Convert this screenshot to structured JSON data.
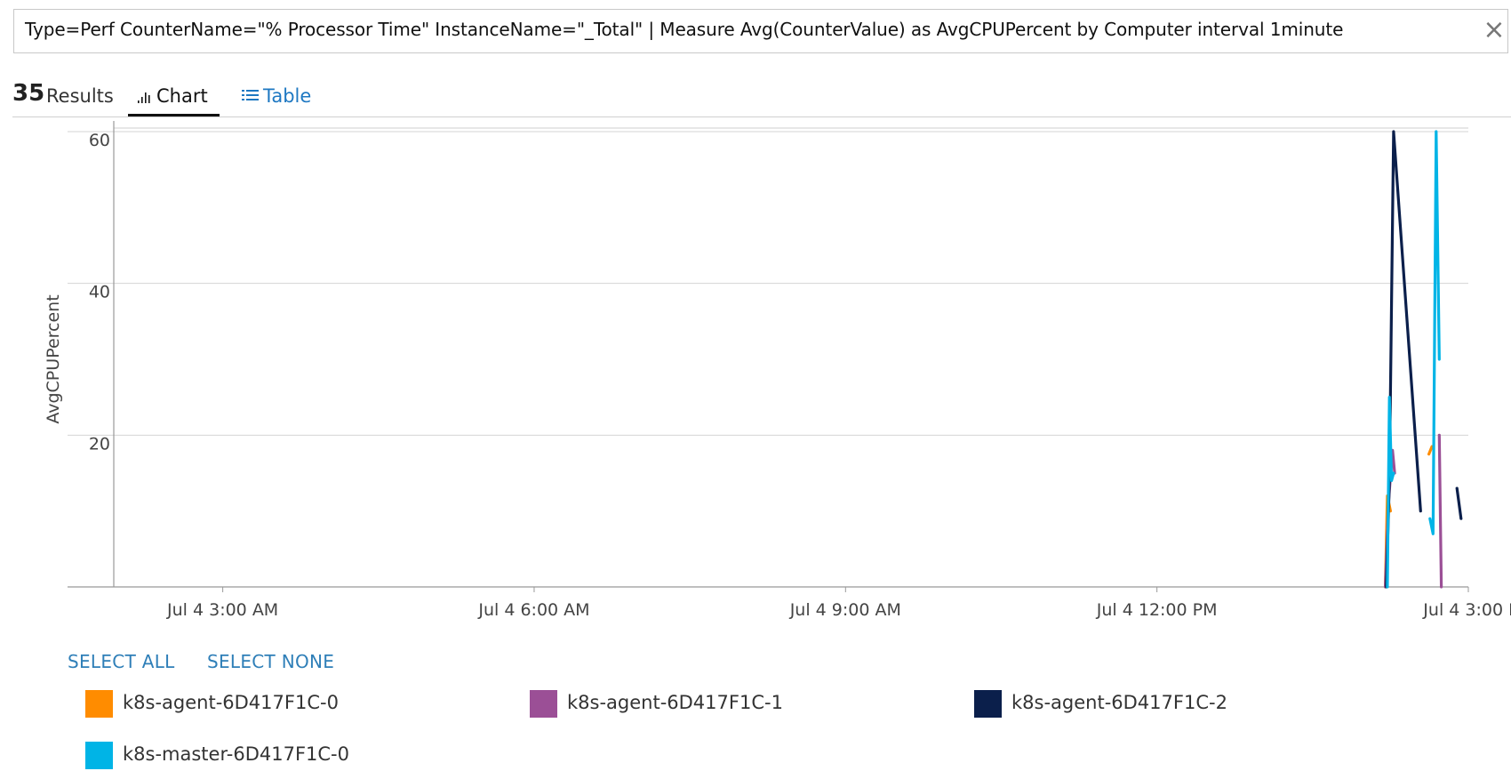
{
  "query": {
    "text": "Type=Perf CounterName=\"% Processor Time\" InstanceName=\"_Total\" | Measure Avg(CounterValue) as AvgCPUPercent by Computer interval 1minute",
    "clear_glyph": "×"
  },
  "results": {
    "count": "35",
    "label": "Results"
  },
  "tabs": [
    {
      "label": "Chart",
      "icon": "bar-chart-icon",
      "active": true
    },
    {
      "label": "Table",
      "icon": "table-list-icon",
      "active": false
    }
  ],
  "legend_actions": {
    "select_all": "SELECT ALL",
    "select_none": "SELECT NONE"
  },
  "colors": {
    "k8s-agent-0": "#ff8c00",
    "k8s-agent-1": "#9b4f96",
    "k8s-agent-2": "#0b1f4b",
    "k8s-master-0": "#00b4e6"
  },
  "chart_data": {
    "type": "line",
    "title": "",
    "xlabel": "",
    "ylabel": "AvgCPUPercent",
    "ylim": [
      0,
      60
    ],
    "yticks": [
      20,
      40,
      60
    ],
    "xlim_hours": [
      1.95,
      15.0
    ],
    "xticks": [
      {
        "hour": 3,
        "label": "Jul 4 3:00 AM"
      },
      {
        "hour": 6,
        "label": "Jul 4 6:00 AM"
      },
      {
        "hour": 9,
        "label": "Jul 4 9:00 AM"
      },
      {
        "hour": 12,
        "label": "Jul 4 12:00 PM"
      },
      {
        "hour": 15,
        "label": "Jul 4 3:00 I"
      }
    ],
    "grid": true,
    "legend": "bottom",
    "series": [
      {
        "name": "k8s-agent-6D417F1C-0",
        "color": "#ff8c00",
        "segments": [
          [
            [
              14.2,
              0
            ],
            [
              14.22,
              12
            ],
            [
              14.25,
              10
            ]
          ],
          [
            [
              14.62,
              17.5
            ],
            [
              14.65,
              18.5
            ]
          ]
        ]
      },
      {
        "name": "k8s-agent-6D417F1C-1",
        "color": "#9b4f96",
        "segments": [
          [
            [
              14.2,
              0
            ],
            [
              14.23,
              11
            ],
            [
              14.27,
              18
            ],
            [
              14.29,
              15
            ]
          ],
          [
            [
              14.72,
              20
            ],
            [
              14.74,
              0
            ]
          ]
        ]
      },
      {
        "name": "k8s-agent-6D417F1C-2",
        "color": "#0b1f4b",
        "segments": [
          [
            [
              14.21,
              0
            ],
            [
              14.24,
              14
            ],
            [
              14.28,
              60
            ],
            [
              14.54,
              10
            ]
          ],
          [
            [
              14.89,
              13
            ],
            [
              14.93,
              9
            ]
          ]
        ]
      },
      {
        "name": "k8s-master-6D417F1C-0",
        "color": "#00b4e6",
        "segments": [
          [
            [
              14.22,
              0
            ],
            [
              14.24,
              25
            ],
            [
              14.26,
              14
            ],
            [
              14.28,
              15
            ]
          ],
          [
            [
              14.63,
              9
            ],
            [
              14.66,
              7
            ],
            [
              14.69,
              60
            ],
            [
              14.72,
              30
            ]
          ]
        ]
      }
    ]
  }
}
